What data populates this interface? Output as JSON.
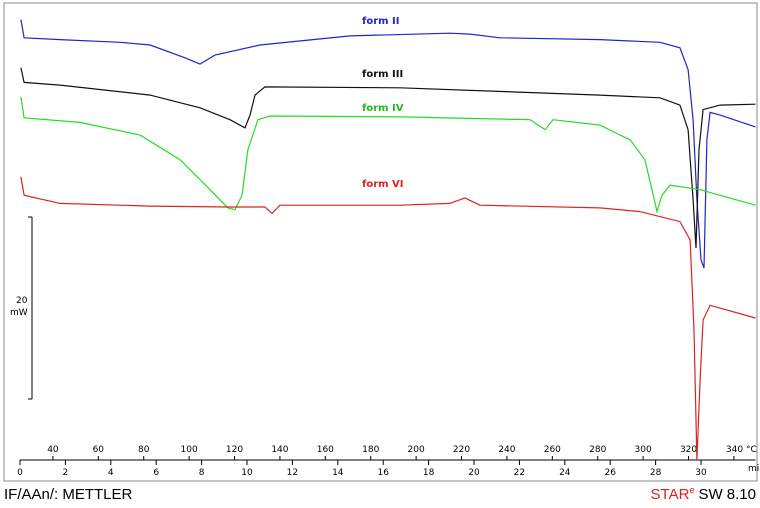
{
  "chart_data": {
    "type": "line",
    "x_label": "min",
    "xlim": [
      0,
      32.4
    ],
    "xticks": [
      0,
      2,
      4,
      6,
      8,
      10,
      12,
      14,
      16,
      18,
      20,
      22,
      24,
      26,
      28,
      30
    ],
    "x2lim": [
      25.5,
      349.5
    ],
    "x2ticks": [
      40,
      60,
      80,
      100,
      120,
      140,
      160,
      180,
      200,
      220,
      240,
      260,
      280,
      300,
      320,
      {
        "value": 340,
        "label": "340 °C"
      }
    ],
    "ylim": [
      0,
      50
    ],
    "scale_bar": {
      "value": 20,
      "unit": "mW"
    },
    "series": [
      {
        "name": "form II",
        "color": "#2323c8",
        "x": [
          0.04,
          0.18,
          1.76,
          4.41,
          5.73,
          7.27,
          7.93,
          8.59,
          10.57,
          14.54,
          18.94,
          19.82,
          21.15,
          25.55,
          28.19,
          29.07,
          29.43,
          29.65,
          29.82,
          30.0,
          30.13,
          30.26,
          30.4,
          30.84,
          32.4
        ],
        "values": [
          48.4,
          46.4,
          46.2,
          45.9,
          45.6,
          44.2,
          43.5,
          44.5,
          45.6,
          46.6,
          46.9,
          46.8,
          46.4,
          46.2,
          45.9,
          45.3,
          42.9,
          37.4,
          28.6,
          22.0,
          21.1,
          35.2,
          38.2,
          37.9,
          36.6
        ]
      },
      {
        "name": "form III",
        "color": "#111111",
        "x": [
          0.04,
          0.18,
          1.76,
          5.73,
          7.93,
          9.25,
          9.91,
          10.13,
          10.35,
          10.79,
          16.74,
          25.55,
          28.19,
          29.07,
          29.43,
          29.65,
          29.78,
          29.91,
          30.09,
          30.84,
          32.4
        ],
        "values": [
          43.1,
          41.5,
          41.2,
          40.1,
          38.7,
          37.4,
          36.5,
          37.9,
          40.1,
          41.0,
          40.9,
          40.1,
          39.8,
          39.0,
          36.3,
          28.6,
          23.3,
          34.1,
          38.5,
          39.0,
          39.1
        ]
      },
      {
        "name": "form IV",
        "color": "#22dd22",
        "x": [
          0.04,
          0.18,
          2.64,
          5.29,
          7.05,
          8.37,
          9.16,
          9.47,
          9.78,
          10.04,
          10.48,
          11.01,
          16.74,
          22.47,
          23.13,
          23.48,
          25.55,
          26.43,
          26.87,
          27.53,
          27.84,
          28.06,
          28.28,
          28.63,
          29.96,
          32.4
        ],
        "values": [
          39.9,
          37.6,
          37.1,
          35.7,
          33.0,
          29.7,
          27.7,
          27.5,
          29.1,
          34.1,
          37.4,
          37.8,
          37.7,
          37.4,
          36.3,
          37.4,
          36.8,
          35.7,
          35.2,
          33.0,
          29.7,
          27.3,
          29.1,
          30.2,
          29.7,
          28.0
        ]
      },
      {
        "name": "form VI",
        "color": "#dd2222",
        "x": [
          0.04,
          0.18,
          1.76,
          5.73,
          9.25,
          10.79,
          11.1,
          11.45,
          16.74,
          18.94,
          19.6,
          20.26,
          25.55,
          27.31,
          29.07,
          29.52,
          29.69,
          29.82,
          29.96,
          30.09,
          30.4,
          32.4
        ],
        "values": [
          31.1,
          29.1,
          28.2,
          27.9,
          27.8,
          27.8,
          27.1,
          28.0,
          28.0,
          28.2,
          28.8,
          28.0,
          27.7,
          27.3,
          26.2,
          24.2,
          14.3,
          0,
          8.8,
          15.4,
          17.0,
          15.6
        ]
      }
    ]
  },
  "footer": {
    "left": "IF/AAn/: METTLER",
    "brand": "STAR",
    "brand_sup": "e",
    "version": "SW 8.10"
  }
}
